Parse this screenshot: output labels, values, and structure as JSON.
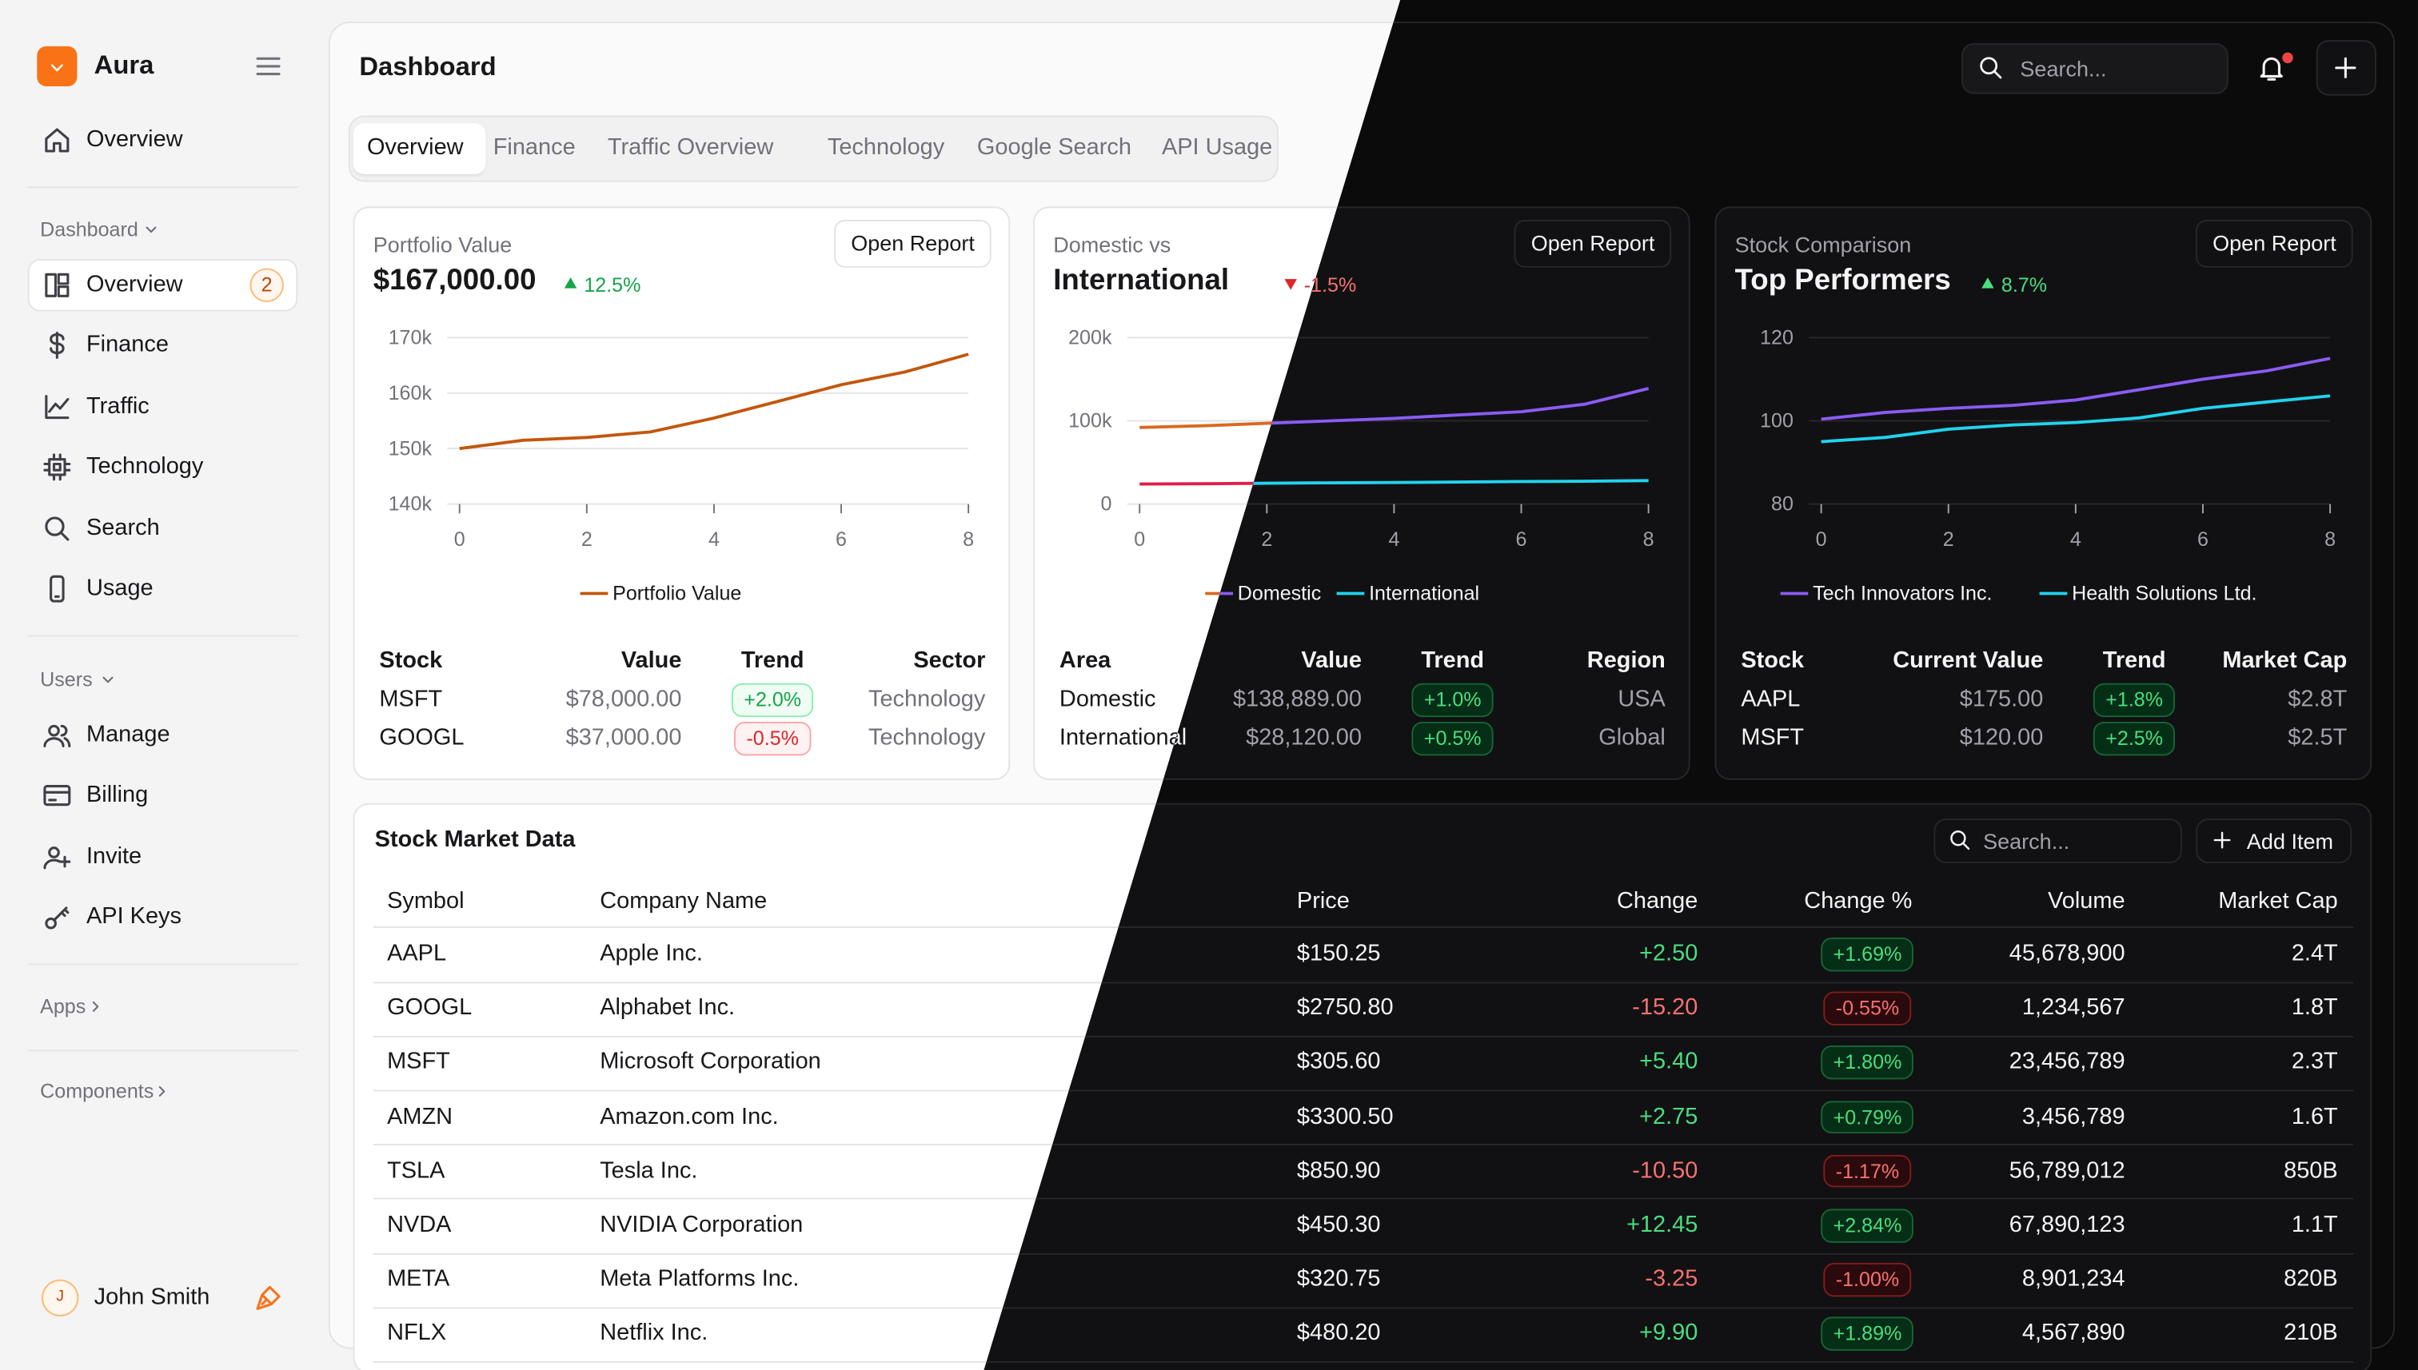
{
  "sidebar": {
    "brand": "Aura",
    "overview": "Overview",
    "sections": [
      {
        "title": "Dashboard",
        "items": [
          {
            "label": "Overview",
            "badge": 2
          },
          {
            "label": "Finance"
          },
          {
            "label": "Traffic"
          },
          {
            "label": "Technology"
          },
          {
            "label": "Search"
          },
          {
            "label": "Usage"
          }
        ]
      },
      {
        "title": "Users",
        "items": [
          {
            "label": "Manage"
          },
          {
            "label": "Billing"
          },
          {
            "label": "Invite"
          },
          {
            "label": "API Keys"
          }
        ]
      },
      {
        "title": "Apps",
        "items": []
      },
      {
        "title": "Components",
        "items": []
      }
    ],
    "user": {
      "initial": "J",
      "name": "John Smith"
    }
  },
  "header": {
    "title": "Dashboard",
    "search_placeholder": "Search..."
  },
  "tabs": {
    "items": [
      "Overview",
      "Finance",
      "Traffic Overview",
      "Technology",
      "Google Search",
      "API Usage"
    ],
    "active": 0
  },
  "cards": [
    {
      "label": "Portfolio Value",
      "title": "$167,000.00",
      "change": "12.5%",
      "trend": "up",
      "button": "Open Report",
      "chart": {
        "type": "line",
        "x": [
          0,
          1,
          2,
          3,
          4,
          5,
          6,
          7,
          8
        ],
        "xlim": [
          0,
          8
        ],
        "xticks": [
          0,
          2,
          4,
          6,
          8
        ],
        "ylim": [
          140000,
          170000
        ],
        "yticks": [
          {
            "value": 140000,
            "label": "140k"
          },
          {
            "value": 150000,
            "label": "150k"
          },
          {
            "value": 160000,
            "label": "160k"
          },
          {
            "value": 170000,
            "label": "170k"
          }
        ],
        "grid": true,
        "series": [
          {
            "name": "Portfolio Value",
            "color": "#c2570c",
            "dark_color": "#fb923c",
            "values": [
              150000,
              151500,
              152000,
              153000,
              155500,
              158500,
              161500,
              163800,
              167000
            ]
          }
        ]
      },
      "table": {
        "columns": [
          "Stock",
          "Value",
          "Trend",
          "Sector"
        ],
        "rows": [
          [
            "MSFT",
            "$78,000.00",
            "+2.0%",
            "Technology"
          ],
          [
            "GOOGL",
            "$37,000.00",
            "-0.5%",
            "Technology"
          ]
        ]
      }
    },
    {
      "label": "Domestic vs",
      "title": "International",
      "change": "-1.5%",
      "trend": "down",
      "button": "Open Report",
      "chart": {
        "type": "line",
        "x": [
          0,
          1,
          2,
          3,
          4,
          5,
          6,
          7,
          8
        ],
        "xlim": [
          0,
          8
        ],
        "xticks": [
          0,
          2,
          4,
          6,
          8
        ],
        "ylim": [
          0,
          200000
        ],
        "yticks": [
          0,
          {
            "value": 100000,
            "label": "100k"
          },
          {
            "value": 200000,
            "label": "200k"
          }
        ],
        "grid": true,
        "series": [
          {
            "name": "Domestic",
            "color": "#d9691e",
            "dark_color": "#8b5cf6",
            "values": [
              92000,
              94000,
              97000,
              100000,
              103000,
              107000,
              111000,
              120000,
              138889
            ]
          },
          {
            "name": "International",
            "color": "#e11d48",
            "dark_color": "#22d3ee",
            "values": [
              24000,
              24500,
              25000,
              25500,
              26000,
              26500,
              27000,
              27500,
              28120
            ]
          }
        ]
      },
      "table": {
        "columns": [
          "Area",
          "Value",
          "Trend",
          "Region"
        ],
        "rows": [
          [
            "Domestic",
            "$138,889.00",
            "+1.0%",
            "USA"
          ],
          [
            "International",
            "$28,120.00",
            "+0.5%",
            "Global"
          ]
        ]
      }
    },
    {
      "label": "Stock Comparison",
      "title": "Top Performers",
      "change": "8.7%",
      "trend": "up",
      "button": "Open Report",
      "chart": {
        "type": "line",
        "x": [
          0,
          1,
          2,
          3,
          4,
          5,
          6,
          7,
          8
        ],
        "xlim": [
          0,
          8
        ],
        "xticks": [
          0,
          2,
          4,
          6,
          8
        ],
        "ylim": [
          80,
          120
        ],
        "yticks": [
          80,
          100,
          120
        ],
        "grid": true,
        "series": [
          {
            "name": "Tech Innovators Inc.",
            "color": "#7c3aed",
            "dark_color": "#8b5cf6",
            "values": [
              100.4,
              102,
              103,
              103.7,
              105,
              107.5,
              110,
              112,
              115
            ]
          },
          {
            "name": "Health Solutions Ltd.",
            "color": "#0891b2",
            "dark_color": "#22d3ee",
            "values": [
              95,
              96,
              98,
              99,
              99.6,
              100.7,
              103,
              104.5,
              106
            ]
          }
        ]
      },
      "table": {
        "columns": [
          "Stock",
          "Current Value",
          "Trend",
          "Market Cap"
        ],
        "rows": [
          [
            "AAPL",
            "$175.00",
            "+1.8%",
            "$2.8T"
          ],
          [
            "MSFT",
            "$120.00",
            "+2.5%",
            "$2.5T"
          ]
        ]
      }
    }
  ],
  "market": {
    "title": "Stock Market Data",
    "search_placeholder": "Search...",
    "add_button": "Add Item",
    "columns": [
      "Symbol",
      "Company Name",
      "Price",
      "Change",
      "Change %",
      "Volume",
      "Market Cap"
    ],
    "rows": [
      [
        "AAPL",
        "Apple Inc.",
        "$150.25",
        "+2.50",
        "+1.69%",
        "45,678,900",
        "2.4T"
      ],
      [
        "GOOGL",
        "Alphabet Inc.",
        "$2750.80",
        "-15.20",
        "-0.55%",
        "1,234,567",
        "1.8T"
      ],
      [
        "MSFT",
        "Microsoft Corporation",
        "$305.60",
        "+5.40",
        "+1.80%",
        "23,456,789",
        "2.3T"
      ],
      [
        "AMZN",
        "Amazon.com Inc.",
        "$3300.50",
        "+2.75",
        "+0.79%",
        "3,456,789",
        "1.6T"
      ],
      [
        "TSLA",
        "Tesla Inc.",
        "$850.90",
        "-10.50",
        "-1.17%",
        "56,789,012",
        "850B"
      ],
      [
        "NVDA",
        "NVIDIA Corporation",
        "$450.30",
        "+12.45",
        "+2.84%",
        "67,890,123",
        "1.1T"
      ],
      [
        "META",
        "Meta Platforms Inc.",
        "$320.75",
        "-3.25",
        "-1.00%",
        "8,901,234",
        "820B"
      ],
      [
        "NFLX",
        "Netflix Inc.",
        "$480.20",
        "+9.90",
        "+1.89%",
        "4,567,890",
        "210B"
      ]
    ]
  }
}
